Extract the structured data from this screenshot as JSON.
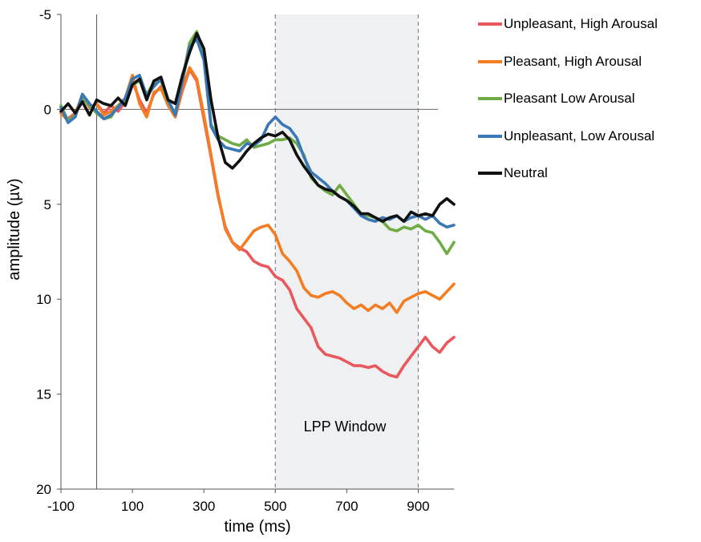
{
  "chart_data": {
    "type": "line",
    "title": "",
    "xlabel": "time (ms)",
    "ylabel": "amplitude (µv)",
    "xlim": [
      -100,
      1000
    ],
    "ylim": [
      -5,
      20
    ],
    "y_inverted": true,
    "xticks": [
      "-100",
      "100",
      "300",
      "500",
      "700",
      "900"
    ],
    "xtick_values": [
      -100,
      100,
      300,
      500,
      700,
      900
    ],
    "yticks": [
      "-5",
      "0",
      "5",
      "10",
      "15",
      "20"
    ],
    "ytick_values": [
      -5,
      0,
      5,
      10,
      15,
      20
    ],
    "grid": false,
    "legend_position": "right",
    "window": {
      "label": "LPP Window",
      "start": 500,
      "end": 900,
      "color": "#eef0f2"
    },
    "reference_lines": {
      "x": 0,
      "y": 0
    },
    "series": [
      {
        "name": "Unpleasant, High Arousal",
        "color": "#e8585c",
        "x": [
          -100,
          -80,
          -60,
          -40,
          -20,
          0,
          20,
          40,
          60,
          80,
          100,
          120,
          140,
          160,
          180,
          200,
          220,
          240,
          260,
          280,
          300,
          320,
          340,
          360,
          380,
          400,
          420,
          440,
          460,
          480,
          500,
          520,
          540,
          560,
          580,
          600,
          620,
          640,
          660,
          680,
          700,
          720,
          740,
          760,
          780,
          800,
          820,
          840,
          860,
          880,
          900,
          920,
          940,
          960,
          980,
          1000
        ],
        "y": [
          0.1,
          0.5,
          0.2,
          -0.7,
          -0.1,
          -0.3,
          0.2,
          -0.2,
          0.1,
          -0.4,
          -1.5,
          -0.5,
          0.2,
          -0.8,
          -1.2,
          -0.4,
          0.4,
          -1.0,
          -2.1,
          -1.5,
          0.5,
          2.5,
          4.6,
          6.2,
          7.0,
          7.3,
          7.5,
          8.0,
          8.2,
          8.3,
          8.8,
          9.0,
          9.5,
          10.5,
          11.0,
          11.5,
          12.5,
          12.9,
          13.0,
          13.1,
          13.3,
          13.5,
          13.5,
          13.6,
          13.5,
          13.8,
          14.0,
          14.1,
          13.5,
          13.0,
          12.5,
          12.0,
          12.5,
          12.8,
          12.3,
          12.0
        ]
      },
      {
        "name": "Pleasant, High Arousal",
        "color": "#f47d22",
        "x": [
          -100,
          -80,
          -60,
          -40,
          -20,
          0,
          20,
          40,
          60,
          80,
          100,
          120,
          140,
          160,
          180,
          200,
          220,
          240,
          260,
          280,
          300,
          320,
          340,
          360,
          380,
          400,
          420,
          440,
          460,
          480,
          500,
          520,
          540,
          560,
          580,
          600,
          620,
          640,
          660,
          680,
          700,
          720,
          740,
          760,
          780,
          800,
          820,
          840,
          860,
          880,
          900,
          920,
          940,
          960,
          980,
          1000
        ],
        "y": [
          0.2,
          0.6,
          0.3,
          -0.8,
          -0.1,
          -0.3,
          0.3,
          0.1,
          -0.2,
          -0.6,
          -1.8,
          -0.3,
          0.4,
          -0.9,
          -1.1,
          -0.2,
          0.4,
          -1.1,
          -2.2,
          -1.6,
          0.3,
          2.4,
          4.5,
          6.3,
          7.0,
          7.4,
          6.9,
          6.4,
          6.2,
          6.1,
          6.6,
          7.6,
          8.0,
          8.5,
          9.4,
          9.8,
          9.9,
          9.7,
          9.6,
          9.8,
          10.2,
          10.5,
          10.3,
          10.6,
          10.3,
          10.5,
          10.2,
          10.7,
          10.1,
          9.9,
          9.7,
          9.6,
          9.8,
          10.0,
          9.6,
          9.2
        ]
      },
      {
        "name": "Pleasant Low Arousal",
        "color": "#70ac45",
        "x": [
          -100,
          -80,
          -60,
          -40,
          -20,
          0,
          20,
          40,
          60,
          80,
          100,
          120,
          140,
          160,
          180,
          200,
          220,
          240,
          260,
          280,
          300,
          320,
          340,
          360,
          380,
          400,
          420,
          440,
          460,
          480,
          500,
          520,
          540,
          560,
          580,
          600,
          620,
          640,
          660,
          680,
          700,
          720,
          740,
          760,
          780,
          800,
          820,
          840,
          860,
          880,
          900,
          920,
          940,
          960,
          980,
          1000
        ],
        "y": [
          -0.2,
          0.6,
          0.3,
          -0.6,
          -0.2,
          0.2,
          0.5,
          0.4,
          -0.2,
          -0.5,
          -1.3,
          -1.5,
          -0.8,
          -1.4,
          -1.5,
          -0.4,
          0.2,
          -1.6,
          -3.5,
          -4.1,
          -3.0,
          0.8,
          1.4,
          1.6,
          1.8,
          1.9,
          1.6,
          2.0,
          1.9,
          1.8,
          1.6,
          1.6,
          1.5,
          1.8,
          2.4,
          3.6,
          4.0,
          4.3,
          4.5,
          4.0,
          4.5,
          5.0,
          5.5,
          5.6,
          5.7,
          5.9,
          6.3,
          6.4,
          6.2,
          6.3,
          6.1,
          6.4,
          6.5,
          7.0,
          7.6,
          7.0
        ]
      },
      {
        "name": "Unpleasant, Low Arousal",
        "color": "#3b78b7",
        "x": [
          -100,
          -80,
          -60,
          -40,
          -20,
          0,
          20,
          40,
          60,
          80,
          100,
          120,
          140,
          160,
          180,
          200,
          220,
          240,
          260,
          280,
          300,
          320,
          340,
          360,
          380,
          400,
          420,
          440,
          460,
          480,
          500,
          520,
          540,
          560,
          580,
          600,
          620,
          640,
          660,
          680,
          700,
          720,
          740,
          760,
          780,
          800,
          820,
          840,
          860,
          880,
          900,
          920,
          940,
          960,
          980,
          1000
        ],
        "y": [
          -0.1,
          0.7,
          0.4,
          -0.8,
          -0.3,
          0.1,
          0.5,
          0.3,
          -0.1,
          -0.6,
          -1.6,
          -1.8,
          -0.7,
          -1.2,
          -1.6,
          -0.5,
          0.3,
          -1.5,
          -3.3,
          -3.7,
          -2.6,
          0.9,
          1.6,
          2.0,
          2.1,
          2.2,
          1.8,
          1.9,
          1.6,
          0.8,
          0.4,
          0.8,
          1.0,
          1.5,
          2.5,
          3.3,
          3.6,
          3.9,
          4.3,
          4.6,
          4.8,
          5.2,
          5.6,
          5.8,
          5.9,
          5.7,
          5.8,
          5.6,
          5.9,
          5.7,
          5.6,
          5.8,
          5.6,
          6.0,
          6.2,
          6.1
        ]
      },
      {
        "name": "Neutral",
        "color": "#111111",
        "x": [
          -100,
          -80,
          -60,
          -40,
          -20,
          0,
          20,
          40,
          60,
          80,
          100,
          120,
          140,
          160,
          180,
          200,
          220,
          240,
          260,
          280,
          300,
          320,
          340,
          360,
          380,
          400,
          420,
          440,
          460,
          480,
          500,
          520,
          540,
          560,
          580,
          600,
          620,
          640,
          660,
          680,
          700,
          720,
          740,
          760,
          780,
          800,
          820,
          840,
          860,
          880,
          900,
          920,
          940,
          960,
          980,
          1000
        ],
        "y": [
          0.1,
          -0.3,
          0.2,
          -0.4,
          0.3,
          -0.5,
          -0.3,
          -0.2,
          -0.6,
          -0.2,
          -1.3,
          -1.6,
          -0.5,
          -1.5,
          -1.7,
          -0.5,
          -0.3,
          -1.8,
          -3.0,
          -4.0,
          -3.2,
          -0.5,
          1.5,
          2.8,
          3.1,
          2.7,
          2.2,
          1.8,
          1.5,
          1.3,
          1.4,
          1.2,
          1.6,
          2.4,
          3.0,
          3.5,
          4.0,
          4.2,
          4.3,
          4.6,
          4.8,
          5.1,
          5.5,
          5.5,
          5.7,
          5.9,
          5.7,
          5.6,
          5.9,
          5.4,
          5.6,
          5.5,
          5.6,
          5.0,
          4.7,
          5.0
        ]
      }
    ]
  }
}
